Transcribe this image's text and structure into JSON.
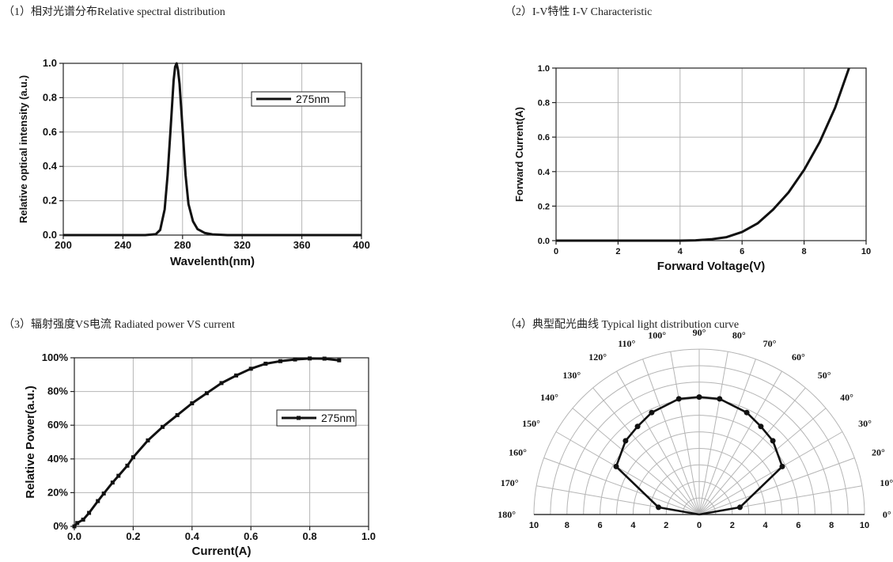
{
  "captions": {
    "c1": "（1）相对光谱分布Relative spectral distribution",
    "c2": "（2）I-V特性 I-V Characteristic",
    "c3": "（3）辐射强度VS电流 Radiated power VS current",
    "c4": "（4）典型配光曲线 Typical light distribution curve"
  },
  "chart_data": [
    {
      "type": "line",
      "title": "Relative spectral distribution",
      "xlabel": "Wavelenth(nm)",
      "ylabel": "Relative optical intensity (a.u.)",
      "xlim": [
        200,
        400
      ],
      "ylim": [
        0.0,
        1.0
      ],
      "xticks": [
        "200",
        "240",
        "280",
        "320",
        "360",
        "400"
      ],
      "yticks": [
        "0.0",
        "0.2",
        "0.4",
        "0.6",
        "0.8",
        "1.0"
      ],
      "legend": "275nm",
      "legend_position": "top-right",
      "grid": true,
      "series": [
        {
          "name": "275nm",
          "x": [
            200,
            255,
            262,
            265,
            268,
            270,
            272,
            274,
            275,
            276,
            277,
            278,
            280,
            282,
            284,
            287,
            290,
            295,
            300,
            310,
            400
          ],
          "y": [
            0.0,
            0.0,
            0.005,
            0.03,
            0.15,
            0.35,
            0.62,
            0.9,
            0.98,
            1.0,
            0.96,
            0.88,
            0.62,
            0.35,
            0.18,
            0.08,
            0.035,
            0.012,
            0.004,
            0.0,
            0.0
          ]
        }
      ]
    },
    {
      "type": "line",
      "title": "I-V Characteristic",
      "xlabel": "Forward Voltage(V)",
      "ylabel": "Forward Current(A)",
      "xlim": [
        0,
        10
      ],
      "ylim": [
        0.0,
        1.0
      ],
      "xticks": [
        "0",
        "2",
        "4",
        "6",
        "8",
        "10"
      ],
      "yticks": [
        "0.0",
        "0.2",
        "0.4",
        "0.6",
        "0.8",
        "1.0"
      ],
      "grid": true,
      "series": [
        {
          "name": "I-V",
          "x": [
            0,
            4.0,
            4.5,
            5.0,
            5.5,
            6.0,
            6.5,
            7.0,
            7.5,
            8.0,
            8.5,
            9.0,
            9.45
          ],
          "y": [
            0.0,
            0.0,
            0.002,
            0.008,
            0.02,
            0.05,
            0.1,
            0.18,
            0.28,
            0.41,
            0.57,
            0.77,
            1.0
          ]
        }
      ]
    },
    {
      "type": "line",
      "title": "Radiated power VS current",
      "xlabel": "Current(A)",
      "ylabel": "Relative Power(a.u.)",
      "xlim": [
        0.0,
        1.0
      ],
      "ylim": [
        0,
        100
      ],
      "xticks": [
        "0.0",
        "0.2",
        "0.4",
        "0.6",
        "0.8",
        "1.0"
      ],
      "yticks": [
        "0%",
        "20%",
        "40%",
        "60%",
        "80%",
        "100%"
      ],
      "legend": "275nm",
      "legend_position": "top-right",
      "grid": true,
      "markers": true,
      "series": [
        {
          "name": "275nm",
          "x": [
            0.0,
            0.01,
            0.03,
            0.05,
            0.08,
            0.1,
            0.13,
            0.15,
            0.18,
            0.2,
            0.25,
            0.3,
            0.35,
            0.4,
            0.45,
            0.5,
            0.55,
            0.6,
            0.65,
            0.7,
            0.75,
            0.8,
            0.85,
            0.9
          ],
          "y": [
            0,
            2,
            4,
            8,
            15,
            19.5,
            26,
            30,
            36,
            41,
            51,
            59,
            66,
            73,
            79,
            85,
            89.5,
            93.5,
            96.5,
            98,
            99,
            99.6,
            99.5,
            98.5
          ]
        }
      ]
    },
    {
      "type": "polar",
      "title": "Typical light distribution curve",
      "radial_ticks": [
        "10",
        "8",
        "6",
        "4",
        "2",
        "0",
        "2",
        "4",
        "6",
        "8",
        "10"
      ],
      "rmax": 10,
      "angle_labels": [
        "0°",
        "10°",
        "20°",
        "30°",
        "40°",
        "50°",
        "60°",
        "70°",
        "80°",
        "90°",
        "100°",
        "110°",
        "120°",
        "130°",
        "140°",
        "150°",
        "160°",
        "170°",
        "180°"
      ],
      "series": [
        {
          "name": "distribution",
          "angles": [
            0,
            10,
            30,
            45,
            55,
            65,
            80,
            90,
            100,
            115,
            125,
            135,
            150,
            170,
            180
          ],
          "r": [
            0,
            2.5,
            5.8,
            6.3,
            6.5,
            6.8,
            7.1,
            7.1,
            7.1,
            6.8,
            6.5,
            6.3,
            5.8,
            2.5,
            0
          ]
        }
      ]
    }
  ]
}
